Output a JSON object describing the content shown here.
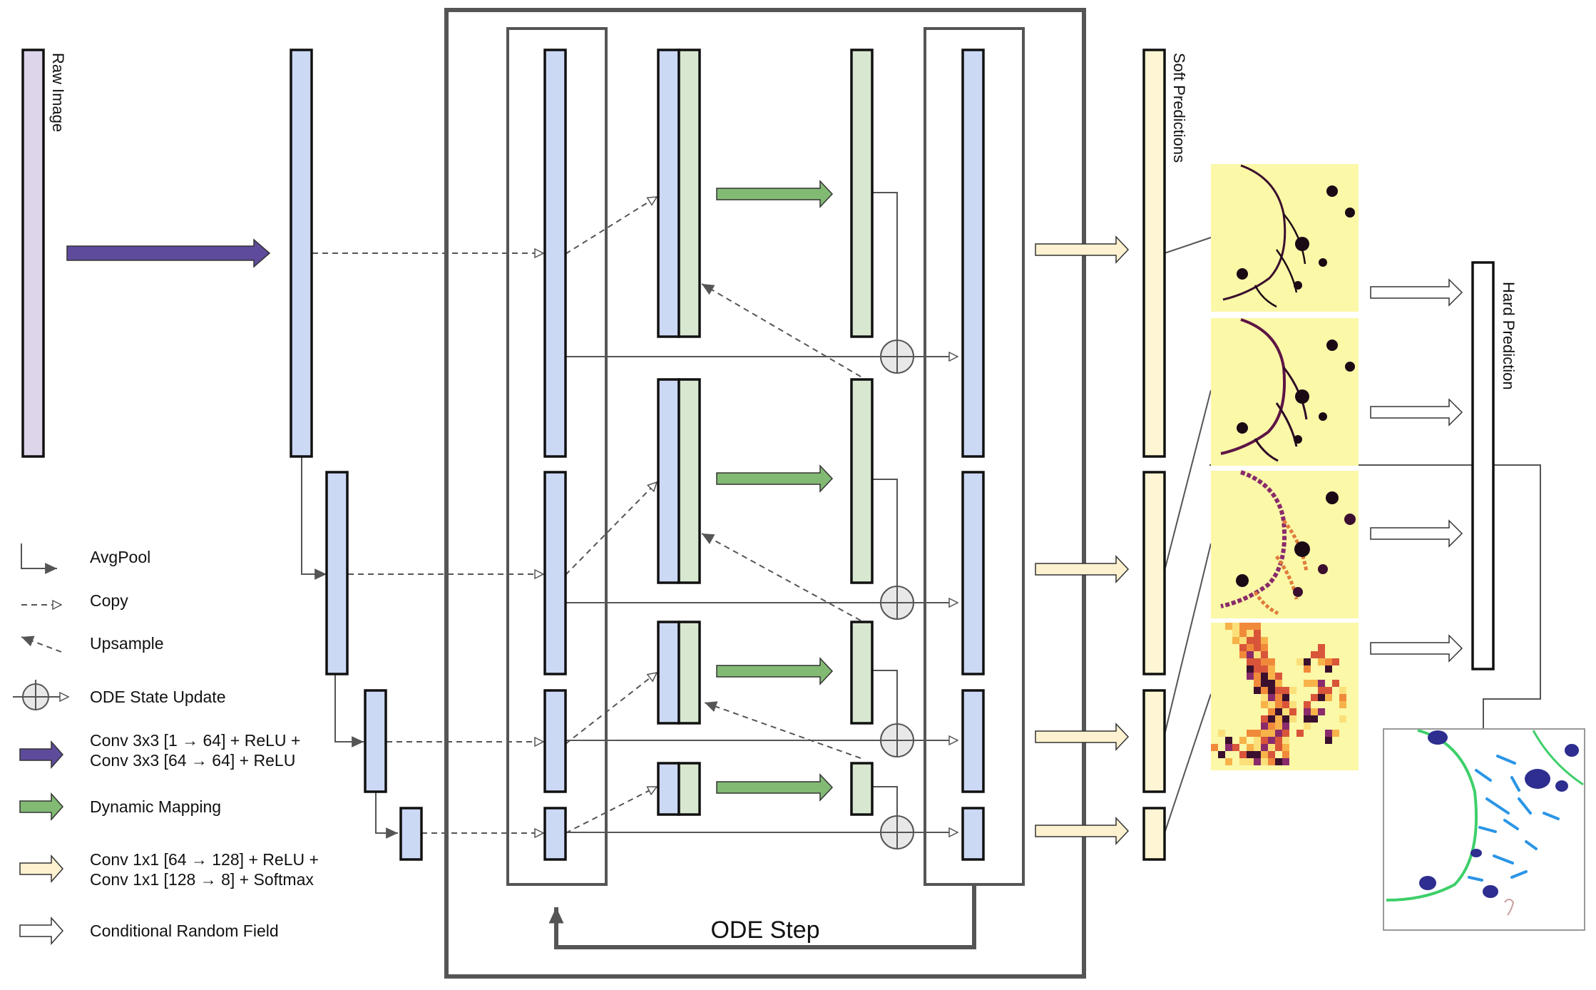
{
  "labels": {
    "raw_image": "Raw Image",
    "soft_predictions": "Soft Predictions",
    "hard_prediction": "Hard Prediction",
    "ode_step": "ODE Step"
  },
  "legend": [
    {
      "key": "avgpool",
      "text": "AvgPool"
    },
    {
      "key": "copy",
      "text": "Copy"
    },
    {
      "key": "upsample",
      "text": "Upsample"
    },
    {
      "key": "ode_state_update",
      "text": "ODE State Update"
    },
    {
      "key": "conv_input",
      "lines": [
        "Conv 3x3 [1 → 64] + ReLU +",
        "Conv 3x3 [64 → 64] + ReLU"
      ]
    },
    {
      "key": "dynamic_mapping",
      "text": "Dynamic Mapping"
    },
    {
      "key": "conv_output",
      "lines": [
        "Conv 1x1 [64 → 128] + ReLU +",
        "Conv 1x1 [128 → 8] + Softmax"
      ]
    },
    {
      "key": "crf",
      "text": "Conditional Random Field"
    }
  ],
  "colors": {
    "raw": "#ddd5ea",
    "blue": "#ccd9f5",
    "green": "#d8e8d0",
    "yellow": "#fdf5d3",
    "conv_arrow": "#5e4b9b",
    "dyn_arrow": "#82ba74",
    "out_arrow": "#fdf1cf",
    "outline": "#111111",
    "gray": "#555555",
    "heat_bg": "#fbf8a8",
    "seg_green": "#3ecf6a",
    "seg_blue": "#2a95e6",
    "seg_navy": "#2d2e8f"
  }
}
